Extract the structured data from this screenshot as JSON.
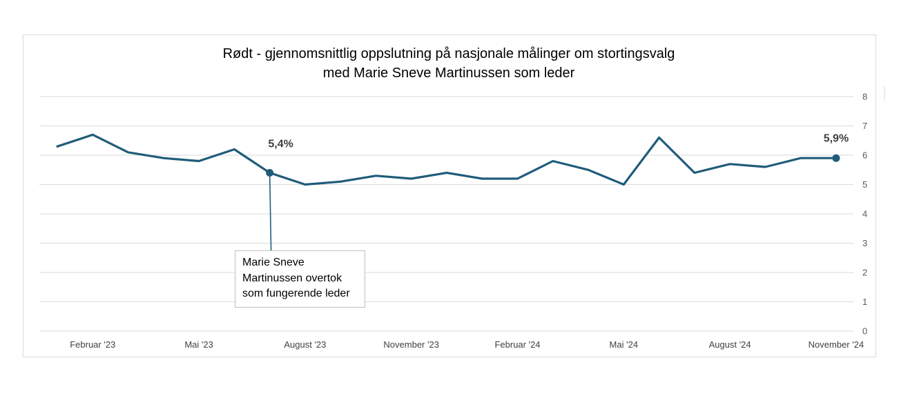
{
  "chart_data": {
    "type": "line",
    "title": "Rødt - gjennomsnittlig oppslutning på nasjonale målinger om stortingsvalg med Marie Sneve Martinussen som leder",
    "title_lines": [
      "Rødt - gjennomsnittlig oppslutning på nasjonale målinger om stortingsvalg",
      "med Marie Sneve Martinussen som leder"
    ],
    "x": [
      "2023-01",
      "2023-02",
      "2023-03",
      "2023-04",
      "2023-05",
      "2023-06",
      "2023-07",
      "2023-08",
      "2023-09",
      "2023-10",
      "2023-11",
      "2023-12",
      "2024-01",
      "2024-02",
      "2024-03",
      "2024-04",
      "2024-05",
      "2024-06",
      "2024-07",
      "2024-08",
      "2024-09",
      "2024-10",
      "2024-11"
    ],
    "series": [
      {
        "values": [
          6.3,
          6.7,
          6.1,
          5.9,
          5.8,
          6.2,
          5.4,
          5.0,
          5.1,
          5.3,
          5.2,
          5.4,
          5.2,
          5.2,
          5.8,
          5.5,
          5.0,
          6.6,
          5.4,
          5.7,
          5.6,
          5.9,
          5.9
        ]
      }
    ],
    "x_tick_labels": [
      {
        "x": "2023-02",
        "label": "Februar '23"
      },
      {
        "x": "2023-05",
        "label": "Mai '23"
      },
      {
        "x": "2023-08",
        "label": "August '23"
      },
      {
        "x": "2023-11",
        "label": "November '23"
      },
      {
        "x": "2024-02",
        "label": "Februar '24"
      },
      {
        "x": "2024-05",
        "label": "Mai '24"
      },
      {
        "x": "2024-08",
        "label": "August '24"
      },
      {
        "x": "2024-11",
        "label": "November '24"
      }
    ],
    "y_ticks": [
      "0",
      "1",
      "2",
      "3",
      "4",
      "5",
      "6",
      "7",
      "8"
    ],
    "ylim": [
      0,
      8
    ],
    "y_axis_side": "right",
    "grid": true,
    "xlabel": "",
    "ylabel": "",
    "data_labels": [
      {
        "x": "2023-07",
        "label": "5,4%"
      },
      {
        "x": "2024-11",
        "label": "5,9%"
      }
    ],
    "annotation": {
      "x": "2023-07",
      "text": "Marie Sneve Martinussen overtok som fungerende leder",
      "lines": [
        "Marie Sneve",
        "Martinussen overtok",
        "som fungerende leder"
      ]
    },
    "colors": {
      "line": "#1F5C7A",
      "grid": "#d9d9d9"
    }
  }
}
